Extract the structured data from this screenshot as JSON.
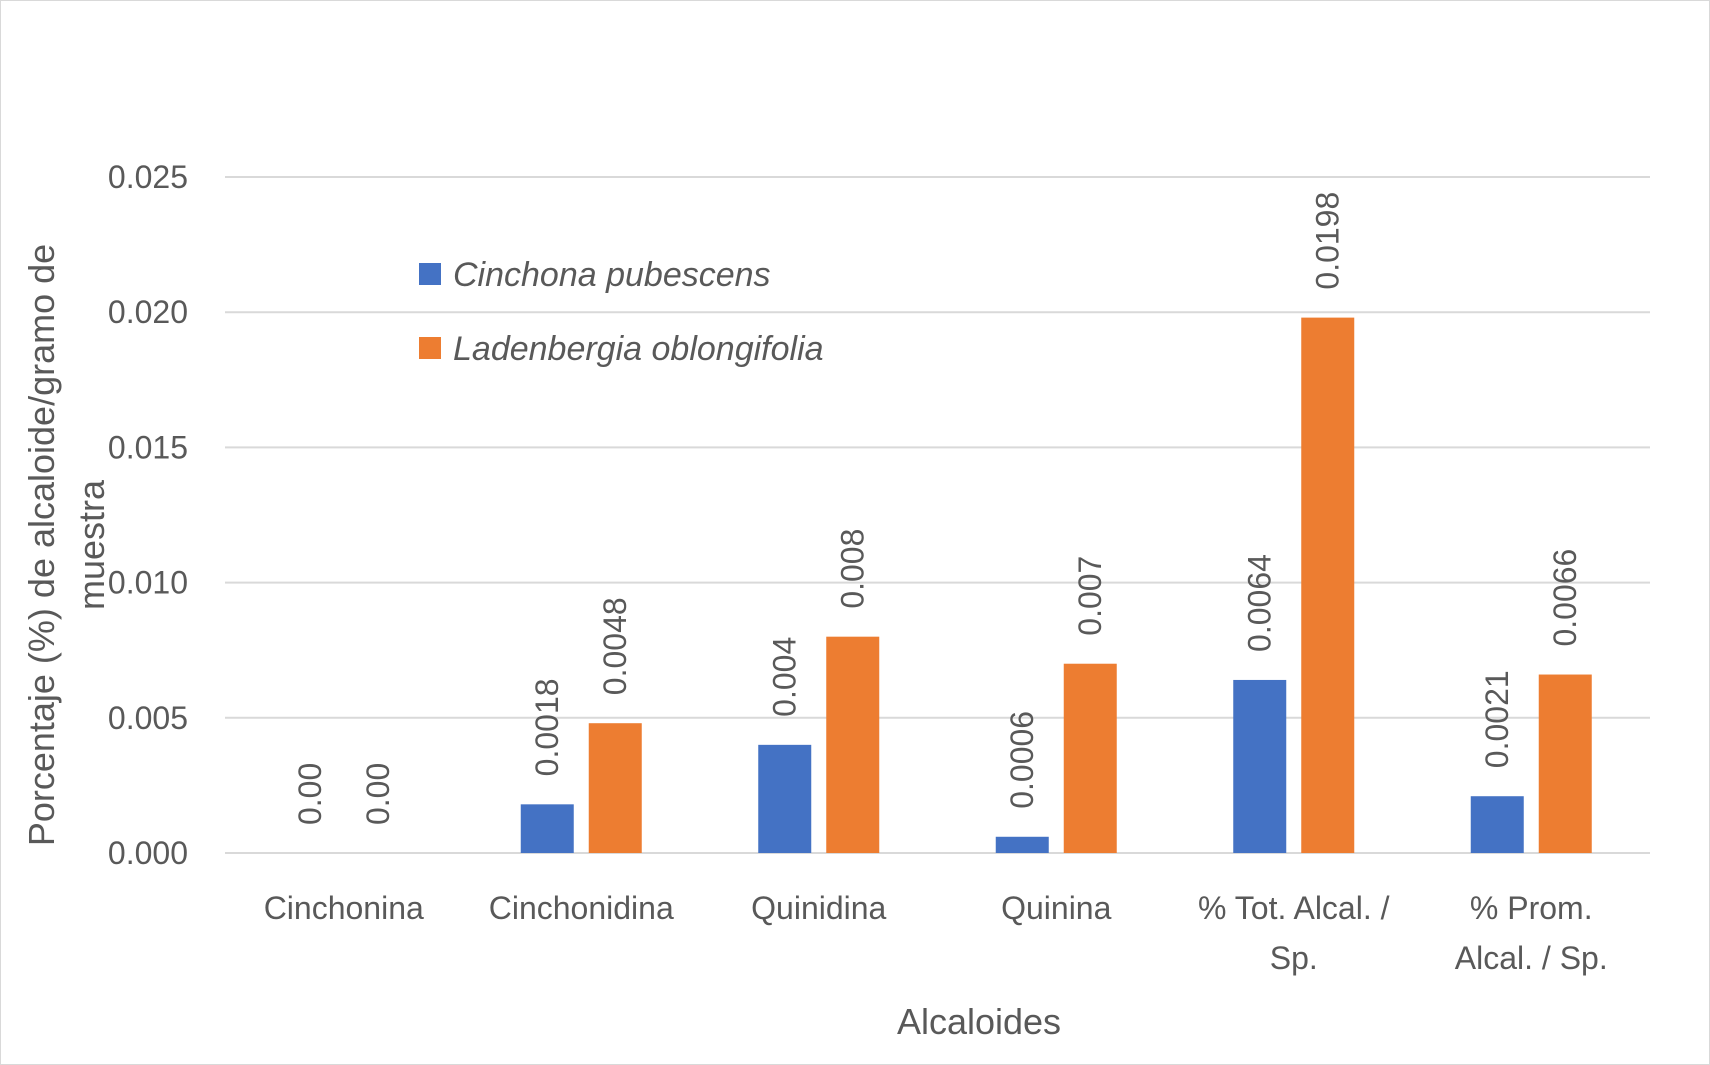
{
  "chart_data": {
    "type": "bar",
    "categories": [
      [
        "Cinchonina"
      ],
      [
        "Cinchonidina"
      ],
      [
        "Quinidina"
      ],
      [
        "Quinina"
      ],
      [
        "% Tot. Alcal. /",
        "Sp."
      ],
      [
        "% Prom.",
        "Alcal. / Sp."
      ]
    ],
    "series": [
      {
        "name": "Cinchona pubescens",
        "color": "#4472C4",
        "values": [
          0.0,
          0.0018,
          0.004,
          0.0006,
          0.0064,
          0.0021
        ],
        "labels": [
          "0.00",
          "0.0018",
          "0.004",
          "0.0006",
          "0.0064",
          "0.0021"
        ]
      },
      {
        "name": "Ladenbergia oblongifolia",
        "color": "#ED7D31",
        "values": [
          0.0,
          0.0048,
          0.008,
          0.007,
          0.0198,
          0.0066
        ],
        "labels": [
          "0.00",
          "0.0048",
          "0.008",
          "0.007",
          "0.0198",
          "0.0066"
        ]
      }
    ],
    "yticks": [
      "0.000",
      "0.005",
      "0.010",
      "0.015",
      "0.020",
      "0.025"
    ],
    "ylim": [
      0,
      0.025
    ],
    "xlabel": "Alcaloides",
    "ylabel": [
      "Porcentaje (%) de alcaloide/gramo de",
      "muestra"
    ],
    "grid": true,
    "legend_position": "top-left"
  }
}
